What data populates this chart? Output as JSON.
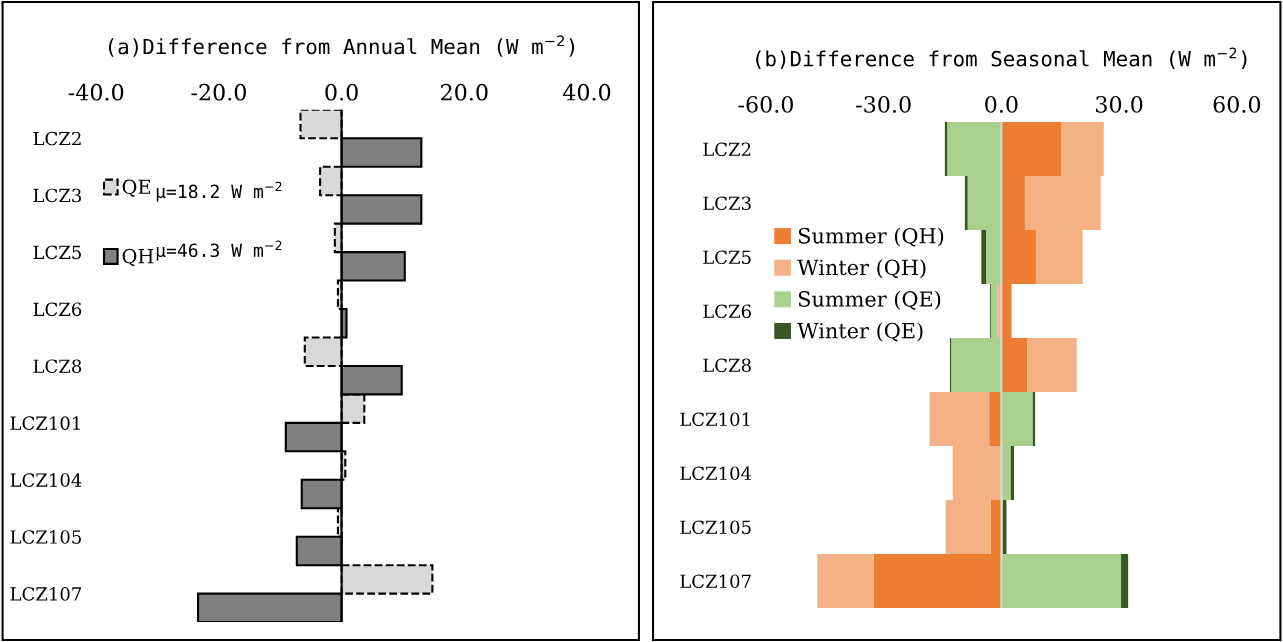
{
  "chart_data": [
    {
      "type": "bar",
      "orientation": "horizontal",
      "title": "(a)Difference from Annual Mean (W m$^{−2}$)",
      "categories": [
        "LCZ2",
        "LCZ3",
        "LCZ5",
        "LCZ6",
        "LCZ8",
        "LCZ101",
        "LCZ104",
        "LCZ105",
        "LCZ107"
      ],
      "series": [
        {
          "name": "QE",
          "color": "#d9d9d9",
          "line_style": "dashed",
          "values": [
            -6.7,
            -3.5,
            -1.1,
            -0.6,
            -6.0,
            3.7,
            0.6,
            -0.6,
            14.8
          ]
        },
        {
          "name": "QH",
          "color": "#808080",
          "line_style": "solid",
          "values": [
            13.0,
            13.0,
            10.3,
            0.8,
            9.8,
            -9.1,
            -6.5,
            -7.3,
            -23.4
          ]
        }
      ],
      "xlim": [
        -40,
        40
      ],
      "xticks": [
        {
          "value": -40,
          "label": "-40.0"
        },
        {
          "value": -20,
          "label": "-20.0"
        },
        {
          "value": 0,
          "label": "0.0"
        },
        {
          "value": 20,
          "label": "20.0"
        },
        {
          "value": 40,
          "label": "40.0"
        }
      ],
      "annotations": [
        "μ=18.2 W m$^{−2}$",
        "μ=46.3 W m$^{−2}$"
      ],
      "ref_lines": [
        {
          "axis": "x",
          "value": 0,
          "color": "#000000"
        }
      ],
      "legend": "upper left",
      "grid": false
    },
    {
      "type": "bar",
      "orientation": "horizontal",
      "stacked": true,
      "title": "(b)Difference from Seasonal Mean (W m$^{−2}$)",
      "categories": [
        "LCZ2",
        "LCZ3",
        "LCZ5",
        "LCZ6",
        "LCZ8",
        "LCZ101",
        "LCZ104",
        "LCZ105",
        "LCZ107"
      ],
      "series": [
        {
          "name": "Summer (QH)",
          "color": "#ed7d31",
          "values": [
            15.2,
            6.0,
            8.8,
            2.6,
            6.6,
            -3.1,
            null,
            -2.7,
            -32.5
          ]
        },
        {
          "name": "Winter (QH)",
          "color": "#f4b183",
          "values": [
            10.9,
            19.3,
            11.9,
            -1.0,
            12.6,
            -15.2,
            -12.4,
            -11.5,
            -14.4
          ]
        },
        {
          "name": "Summer (QE)",
          "color": "#a9d18e",
          "values": [
            -13.8,
            -8.6,
            -3.9,
            -1.7,
            -12.8,
            8.0,
            2.4,
            0.4,
            30.5
          ]
        },
        {
          "name": "Winter (QE)",
          "color": "#375623",
          "values": [
            -0.6,
            -0.7,
            -1.2,
            -0.2,
            -0.3,
            0.6,
            0.8,
            0.9,
            1.8
          ]
        }
      ],
      "xlim": [
        -60,
        60
      ],
      "xticks": [
        {
          "value": -60,
          "label": "-60.0"
        },
        {
          "value": -30,
          "label": "-30.0"
        },
        {
          "value": 0,
          "label": "0.0"
        },
        {
          "value": 30,
          "label": "30.0"
        },
        {
          "value": 60,
          "label": "60.0"
        }
      ],
      "ref_lines": [
        {
          "axis": "x",
          "value": 0,
          "color": "#d9d9d9"
        }
      ],
      "legend": "upper left",
      "grid": false
    }
  ]
}
